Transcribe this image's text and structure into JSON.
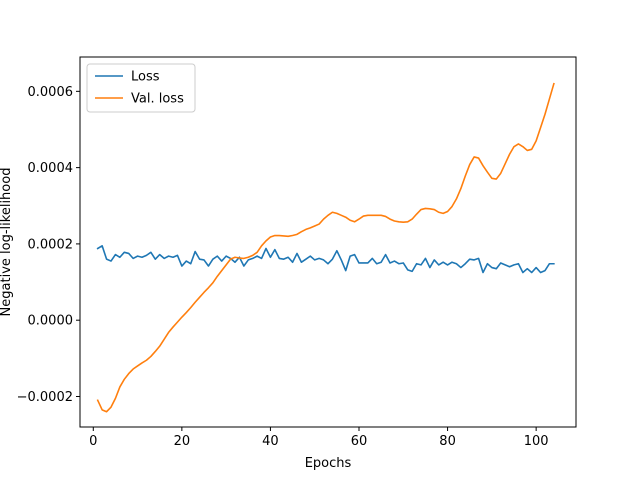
{
  "chart_data": {
    "type": "line",
    "xlabel": "Epochs",
    "ylabel": "Negative log-likelihood",
    "xlim": [
      -3,
      109
    ],
    "ylim": [
      -0.00028,
      0.00069
    ],
    "xticks": [
      0,
      20,
      40,
      60,
      80,
      100
    ],
    "yticks": [
      -0.0002,
      0.0,
      0.0002,
      0.0004,
      0.0006
    ],
    "ytick_labels": [
      "−0.0002",
      "0.0000",
      "0.0002",
      "0.0004",
      "0.0006"
    ],
    "grid": false,
    "legend_position": "top-left",
    "series": [
      {
        "name": "Loss",
        "color": "#1f77b4",
        "x": [
          1,
          2,
          3,
          4,
          5,
          6,
          7,
          8,
          9,
          10,
          11,
          12,
          13,
          14,
          15,
          16,
          17,
          18,
          19,
          20,
          21,
          22,
          23,
          24,
          25,
          26,
          27,
          28,
          29,
          30,
          31,
          32,
          33,
          34,
          35,
          36,
          37,
          38,
          39,
          40,
          41,
          42,
          43,
          44,
          45,
          46,
          47,
          48,
          49,
          50,
          51,
          52,
          53,
          54,
          55,
          56,
          57,
          58,
          59,
          60,
          61,
          62,
          63,
          64,
          65,
          66,
          67,
          68,
          69,
          70,
          71,
          72,
          73,
          74,
          75,
          76,
          77,
          78,
          79,
          80,
          81,
          82,
          83,
          84,
          85,
          86,
          87,
          88,
          89,
          90,
          91,
          92,
          93,
          94,
          95,
          96,
          97,
          98,
          99,
          100,
          101,
          102,
          103,
          104
        ],
        "y": [
          0.000188,
          0.000195,
          0.00016,
          0.000155,
          0.000172,
          0.000165,
          0.000178,
          0.000175,
          0.000162,
          0.000168,
          0.000165,
          0.00017,
          0.000178,
          0.00016,
          0.000172,
          0.000162,
          0.000168,
          0.000165,
          0.00017,
          0.000142,
          0.000155,
          0.000148,
          0.00018,
          0.00016,
          0.000158,
          0.000142,
          0.00016,
          0.000168,
          0.000155,
          0.000168,
          0.000162,
          0.000152,
          0.000165,
          0.000142,
          0.000158,
          0.000162,
          0.000168,
          0.000162,
          0.000188,
          0.000165,
          0.000185,
          0.000162,
          0.00016,
          0.000165,
          0.000152,
          0.000175,
          0.000152,
          0.00016,
          0.000168,
          0.000158,
          0.000162,
          0.000158,
          0.000148,
          0.00016,
          0.000182,
          0.000158,
          0.00013,
          0.000168,
          0.000172,
          0.00015,
          0.00015,
          0.00015,
          0.000162,
          0.000148,
          0.000152,
          0.000172,
          0.00015,
          0.000155,
          0.000148,
          0.00015,
          0.000132,
          0.000128,
          0.000148,
          0.000145,
          0.000162,
          0.000138,
          0.000158,
          0.000145,
          0.000152,
          0.000145,
          0.000152,
          0.000148,
          0.000138,
          0.000148,
          0.00016,
          0.000158,
          0.000162,
          0.000125,
          0.000148,
          0.000138,
          0.000135,
          0.00015,
          0.000145,
          0.00014,
          0.000145,
          0.000148,
          0.000125,
          0.000135,
          0.000125,
          0.000138,
          0.000125,
          0.00013,
          0.000148,
          0.000148
        ]
      },
      {
        "name": "Val. loss",
        "color": "#ff7f0e",
        "x": [
          1,
          2,
          3,
          4,
          5,
          6,
          7,
          8,
          9,
          10,
          11,
          12,
          13,
          14,
          15,
          16,
          17,
          18,
          19,
          20,
          21,
          22,
          23,
          24,
          25,
          26,
          27,
          28,
          29,
          30,
          31,
          32,
          33,
          34,
          35,
          36,
          37,
          38,
          39,
          40,
          41,
          42,
          43,
          44,
          45,
          46,
          47,
          48,
          49,
          50,
          51,
          52,
          53,
          54,
          55,
          56,
          57,
          58,
          59,
          60,
          61,
          62,
          63,
          64,
          65,
          66,
          67,
          68,
          69,
          70,
          71,
          72,
          73,
          74,
          75,
          76,
          77,
          78,
          79,
          80,
          81,
          82,
          83,
          84,
          85,
          86,
          87,
          88,
          89,
          90,
          91,
          92,
          93,
          94,
          95,
          96,
          97,
          98,
          99,
          100,
          101,
          102,
          103,
          104
        ],
        "y": [
          -0.00021,
          -0.000235,
          -0.00024,
          -0.000228,
          -0.000205,
          -0.000175,
          -0.000155,
          -0.00014,
          -0.000128,
          -0.00012,
          -0.000112,
          -0.000105,
          -9.5e-05,
          -8.2e-05,
          -6.8e-05,
          -5e-05,
          -3.2e-05,
          -1.8e-05,
          -5e-06,
          8e-06,
          2e-05,
          3.3e-05,
          4.7e-05,
          6e-05,
          7.3e-05,
          8.5e-05,
          9.8e-05,
          0.000115,
          0.00013,
          0.000145,
          0.00016,
          0.000165,
          0.000163,
          0.000162,
          0.000165,
          0.00017,
          0.000178,
          0.000195,
          0.000208,
          0.000218,
          0.000222,
          0.000222,
          0.000221,
          0.00022,
          0.000222,
          0.000225,
          0.000232,
          0.000238,
          0.000242,
          0.000247,
          0.000252,
          0.000265,
          0.000275,
          0.000283,
          0.00028,
          0.000275,
          0.00027,
          0.000262,
          0.000258,
          0.000265,
          0.000273,
          0.000275,
          0.000275,
          0.000275,
          0.000275,
          0.000272,
          0.000265,
          0.00026,
          0.000258,
          0.000257,
          0.000258,
          0.000265,
          0.000278,
          0.00029,
          0.000293,
          0.000292,
          0.00029,
          0.000283,
          0.00028,
          0.000285,
          0.000298,
          0.000318,
          0.000345,
          0.000378,
          0.000408,
          0.000428,
          0.000425,
          0.000405,
          0.000388,
          0.000372,
          0.00037,
          0.000385,
          0.00041,
          0.000435,
          0.000455,
          0.000462,
          0.000455,
          0.000445,
          0.000448,
          0.00047,
          0.000505,
          0.00054,
          0.00058,
          0.00062
        ]
      }
    ]
  }
}
